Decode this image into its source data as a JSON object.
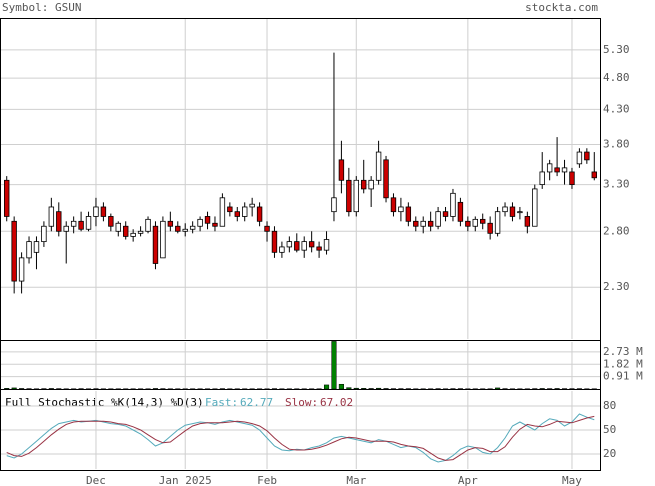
{
  "chart_data": [
    {
      "type": "candlestick",
      "title": "Symbol: GSUN",
      "source": "stockta.com",
      "categories": [
        null,
        null,
        null,
        null,
        null,
        null,
        null,
        null,
        null,
        null,
        null,
        null,
        "Dec",
        null,
        null,
        null,
        null,
        null,
        null,
        null,
        null,
        null,
        null,
        null,
        "Jan 2025",
        null,
        null,
        null,
        null,
        null,
        null,
        null,
        null,
        null,
        null,
        "Feb",
        null,
        null,
        null,
        null,
        null,
        null,
        null,
        null,
        null,
        null,
        null,
        "Mar",
        null,
        null,
        null,
        null,
        null,
        null,
        null,
        null,
        null,
        null,
        null,
        null,
        null,
        null,
        "Apr",
        null,
        null,
        null,
        null,
        null,
        null,
        null,
        null,
        null,
        null,
        null,
        null,
        null,
        "May",
        null,
        null,
        null
      ],
      "open": [
        3.35,
        2.9,
        2.35,
        2.55,
        2.6,
        2.7,
        2.85,
        3.0,
        2.8,
        2.85,
        2.9,
        2.82,
        2.95,
        3.05,
        2.95,
        2.8,
        2.85,
        2.75,
        2.78,
        2.8,
        2.85,
        2.55,
        2.9,
        2.85,
        2.8,
        2.82,
        2.85,
        2.95,
        2.88,
        2.85,
        3.05,
        3.0,
        2.95,
        3.05,
        3.05,
        2.85,
        2.8,
        2.6,
        2.65,
        2.7,
        2.62,
        2.7,
        2.65,
        2.62,
        3.0,
        3.6,
        3.35,
        3.0,
        3.35,
        3.25,
        3.35,
        3.6,
        3.15,
        3.0,
        3.05,
        2.9,
        2.85,
        2.9,
        2.85,
        3.0,
        2.95,
        3.1,
        2.9,
        2.85,
        2.92,
        2.88,
        2.78,
        3.0,
        3.05,
        3.0,
        2.95,
        2.85,
        3.3,
        3.45,
        3.5,
        3.45,
        3.45,
        3.55,
        3.7,
        3.45
      ],
      "high": [
        3.4,
        2.95,
        2.6,
        2.75,
        2.75,
        2.9,
        3.15,
        3.1,
        2.9,
        2.95,
        3.0,
        3.0,
        3.15,
        3.1,
        2.98,
        2.9,
        2.9,
        2.82,
        2.85,
        2.95,
        2.9,
        2.95,
        3.0,
        2.9,
        2.88,
        2.9,
        2.95,
        3.0,
        2.95,
        3.2,
        3.1,
        3.05,
        3.1,
        3.15,
        3.1,
        2.9,
        2.85,
        2.7,
        2.75,
        2.78,
        2.75,
        2.8,
        2.7,
        2.8,
        5.25,
        3.85,
        3.5,
        3.4,
        3.6,
        3.4,
        3.85,
        3.65,
        3.2,
        3.15,
        3.1,
        2.95,
        2.95,
        3.0,
        3.05,
        3.05,
        3.25,
        3.15,
        2.95,
        2.95,
        2.98,
        2.95,
        3.05,
        3.1,
        3.1,
        3.05,
        3.0,
        3.3,
        3.7,
        3.6,
        3.9,
        3.6,
        3.5,
        3.75,
        3.75,
        3.7
      ],
      "low": [
        2.9,
        2.25,
        2.25,
        2.5,
        2.45,
        2.65,
        2.8,
        2.75,
        2.5,
        2.78,
        2.8,
        2.8,
        2.85,
        2.9,
        2.8,
        2.75,
        2.72,
        2.7,
        2.75,
        2.78,
        2.45,
        2.55,
        2.8,
        2.78,
        2.75,
        2.78,
        2.8,
        2.82,
        2.8,
        2.85,
        2.95,
        2.9,
        2.9,
        2.95,
        2.85,
        2.7,
        2.55,
        2.55,
        2.6,
        2.6,
        2.55,
        2.6,
        2.55,
        2.58,
        2.9,
        3.2,
        2.95,
        2.95,
        3.2,
        3.05,
        3.3,
        3.1,
        2.95,
        2.9,
        2.85,
        2.8,
        2.78,
        2.8,
        2.82,
        2.9,
        2.9,
        2.85,
        2.8,
        2.8,
        2.82,
        2.72,
        2.75,
        2.95,
        2.9,
        2.92,
        2.78,
        2.85,
        3.25,
        3.35,
        3.4,
        3.3,
        3.25,
        3.5,
        3.55,
        3.35
      ],
      "close": [
        2.95,
        2.35,
        2.55,
        2.7,
        2.7,
        2.85,
        3.05,
        2.8,
        2.85,
        2.9,
        2.82,
        2.95,
        3.05,
        2.95,
        2.85,
        2.88,
        2.75,
        2.78,
        2.8,
        2.92,
        2.5,
        2.9,
        2.85,
        2.8,
        2.82,
        2.85,
        2.92,
        2.88,
        2.85,
        3.15,
        3.0,
        2.95,
        3.05,
        3.08,
        2.9,
        2.8,
        2.6,
        2.65,
        2.7,
        2.62,
        2.7,
        2.65,
        2.62,
        2.72,
        3.15,
        3.35,
        3.0,
        3.35,
        3.25,
        3.35,
        3.7,
        3.15,
        3.0,
        3.05,
        2.9,
        2.85,
        2.9,
        2.85,
        3.0,
        2.95,
        3.2,
        2.9,
        2.85,
        2.92,
        2.88,
        2.78,
        3.0,
        3.05,
        2.95,
        3.0,
        2.85,
        3.25,
        3.45,
        3.55,
        3.45,
        3.5,
        3.3,
        3.7,
        3.6,
        3.38
      ],
      "up_color": "#ffffff",
      "down_color": "#cc0000",
      "log": true,
      "grid": true,
      "ylim": [
        1.91,
        5.93
      ],
      "yticks": [
        {
          "value": 5.3,
          "label": "5.30"
        },
        {
          "value": 4.8,
          "label": "4.80"
        },
        {
          "value": 4.3,
          "label": "4.30"
        },
        {
          "value": 3.8,
          "label": "3.80"
        },
        {
          "value": 3.3,
          "label": "3.30"
        },
        {
          "value": 2.8,
          "label": "2.80"
        },
        {
          "value": 2.3,
          "label": "2.30"
        }
      ]
    },
    {
      "type": "bar",
      "color": "#008000",
      "grid": true,
      "values": [
        0.05,
        0.08,
        0.04,
        0.03,
        0.02,
        0.03,
        0.04,
        0.03,
        0.02,
        0.02,
        0.03,
        0.02,
        0.03,
        0.02,
        0.02,
        0.02,
        0.02,
        0.02,
        0.02,
        0.02,
        0.04,
        0.03,
        0.02,
        0.02,
        0.02,
        0.02,
        0.02,
        0.02,
        0.02,
        0.03,
        0.02,
        0.02,
        0.02,
        0.02,
        0.02,
        0.02,
        0.03,
        0.02,
        0.02,
        0.02,
        0.02,
        0.02,
        0.02,
        0.3,
        3.5,
        0.35,
        0.1,
        0.06,
        0.05,
        0.04,
        0.06,
        0.04,
        0.03,
        0.03,
        0.03,
        0.02,
        0.02,
        0.02,
        0.03,
        0.02,
        0.03,
        0.03,
        0.02,
        0.02,
        0.02,
        0.02,
        0.08,
        0.03,
        0.02,
        0.02,
        0.02,
        0.03,
        0.04,
        0.03,
        0.04,
        0.03,
        0.03,
        0.03,
        0.02,
        0.02
      ],
      "ylim": [
        0,
        3.53
      ],
      "yticks": [
        {
          "value": 2.73,
          "label": "2.73 M"
        },
        {
          "value": 1.82,
          "label": "1.82 M"
        },
        {
          "value": 0.91,
          "label": "0.91 M"
        }
      ]
    },
    {
      "type": "line",
      "title": "Full Stochastic %K(14,3) %D(3)",
      "grid": true,
      "series": [
        {
          "name": "Fast:",
          "color": "#55aabb",
          "values": [
            18,
            15,
            20,
            28,
            36,
            44,
            52,
            58,
            60,
            62,
            60,
            61,
            62,
            60,
            58,
            57,
            55,
            50,
            45,
            38,
            30,
            34,
            42,
            50,
            56,
            58,
            60,
            59,
            57,
            60,
            62,
            60,
            58,
            56,
            50,
            40,
            30,
            25,
            24,
            26,
            25,
            28,
            30,
            34,
            40,
            42,
            40,
            38,
            36,
            34,
            38,
            36,
            32,
            28,
            30,
            28,
            22,
            14,
            10,
            12,
            18,
            26,
            30,
            28,
            22,
            20,
            28,
            40,
            55,
            60,
            55,
            50,
            58,
            64,
            62,
            55,
            60,
            70,
            66,
            62.77
          ]
        },
        {
          "name": "Slow:",
          "color": "#993344",
          "values": [
            22,
            18,
            17,
            21,
            28,
            36,
            44,
            51,
            57,
            60,
            61,
            61,
            61,
            61,
            60,
            58,
            57,
            54,
            50,
            44,
            38,
            34,
            35,
            42,
            49,
            55,
            58,
            59,
            59,
            59,
            60,
            61,
            60,
            58,
            55,
            49,
            40,
            32,
            26,
            25,
            25,
            26,
            28,
            31,
            35,
            39,
            41,
            40,
            38,
            36,
            36,
            36,
            35,
            32,
            30,
            29,
            27,
            21,
            15,
            12,
            13,
            19,
            25,
            28,
            27,
            23,
            23,
            29,
            41,
            51,
            57,
            55,
            54,
            57,
            61,
            60,
            59,
            62,
            65,
            67.02
          ]
        }
      ],
      "ylim": [
        0,
        100
      ],
      "yticks": [
        80,
        50,
        20
      ]
    }
  ]
}
